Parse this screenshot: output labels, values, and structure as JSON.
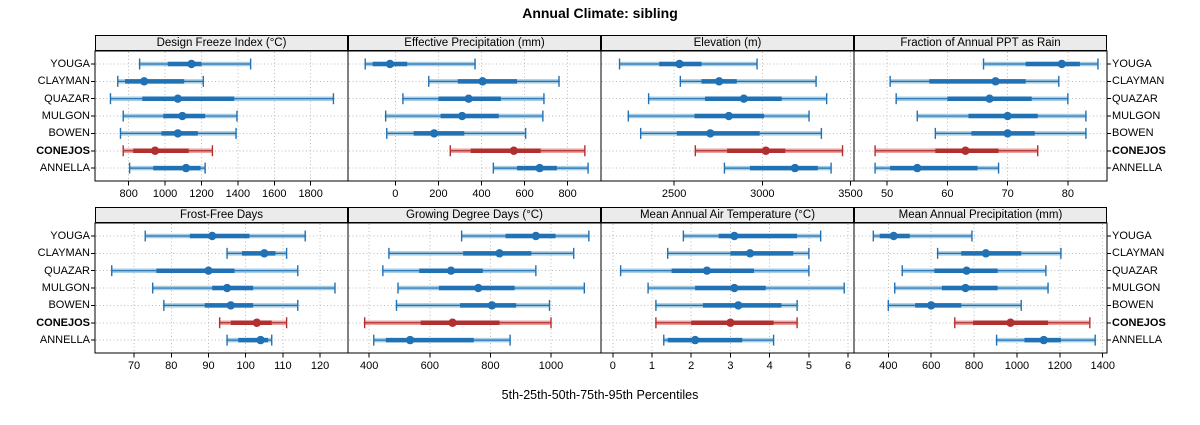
{
  "title": "Annual Climate: sibling",
  "caption": "5th-25th-50th-75th-95th Percentiles",
  "sites": [
    "YOUGA",
    "CLAYMAN",
    "QUAZAR",
    "MULGON",
    "BOWEN",
    "CONEJOS",
    "ANNELLA"
  ],
  "highlight_site": "CONEJOS",
  "colors": {
    "series_blue": "#2171b5",
    "series_blue_light": "#a8cee3",
    "highlight_red": "#b22f2f",
    "highlight_red_light": "#e9a3a3",
    "grid": "#bbbbbb",
    "strip_bg": "#ebebeb",
    "border": "#000000"
  },
  "chart_data": {
    "type": "percentile-dotplot",
    "layout": "2 rows x 4 columns, shared site rows",
    "percentile_labels": [
      "5th",
      "25th",
      "50th",
      "75th",
      "95th"
    ],
    "panels": [
      {
        "title": "Design Freeze Index (°C)",
        "row": 0,
        "col": 0,
        "xlim": [
          615,
          2005
        ],
        "ticks": [
          800,
          1000,
          1200,
          1400,
          1600,
          1800
        ],
        "series": [
          {
            "site": "YOUGA",
            "p": [
              860,
              1015,
              1145,
              1200,
              1470
            ]
          },
          {
            "site": "CLAYMAN",
            "p": [
              740,
              780,
              885,
              1105,
              1210
            ]
          },
          {
            "site": "QUAZAR",
            "p": [
              700,
              875,
              1070,
              1380,
              1925
            ]
          },
          {
            "site": "MULGON",
            "p": [
              770,
              990,
              1095,
              1220,
              1395
            ]
          },
          {
            "site": "BOWEN",
            "p": [
              755,
              980,
              1070,
              1180,
              1390
            ]
          },
          {
            "site": "CONEJOS",
            "p": [
              770,
              825,
              945,
              1130,
              1260
            ]
          },
          {
            "site": "ANNELLA",
            "p": [
              805,
              935,
              1115,
              1195,
              1220
            ]
          }
        ]
      },
      {
        "title": "Effective Precipitation (mm)",
        "row": 0,
        "col": 1,
        "xlim": [
          -220,
          955
        ],
        "ticks": [
          0,
          200,
          400,
          600,
          800
        ],
        "series": [
          {
            "site": "YOUGA",
            "p": [
              -140,
              -105,
              -25,
              55,
              370
            ]
          },
          {
            "site": "CLAYMAN",
            "p": [
              155,
              290,
              405,
              565,
              760
            ]
          },
          {
            "site": "QUAZAR",
            "p": [
              35,
              200,
              340,
              490,
              690
            ]
          },
          {
            "site": "MULGON",
            "p": [
              -45,
              210,
              310,
              480,
              685
            ]
          },
          {
            "site": "BOWEN",
            "p": [
              -40,
              85,
              180,
              320,
              605
            ]
          },
          {
            "site": "CONEJOS",
            "p": [
              255,
              350,
              550,
              675,
              880
            ]
          },
          {
            "site": "ANNELLA",
            "p": [
              455,
              565,
              670,
              750,
              895
            ]
          }
        ]
      },
      {
        "title": "Elevation (m)",
        "row": 0,
        "col": 2,
        "xlim": [
          2085,
          3520
        ],
        "ticks": [
          2500,
          3000,
          3500
        ],
        "series": [
          {
            "site": "YOUGA",
            "p": [
              2190,
              2415,
              2530,
              2655,
              2970
            ]
          },
          {
            "site": "CLAYMAN",
            "p": [
              2535,
              2655,
              2755,
              2855,
              3305
            ]
          },
          {
            "site": "QUAZAR",
            "p": [
              2355,
              2675,
              2895,
              3110,
              3365
            ]
          },
          {
            "site": "MULGON",
            "p": [
              2240,
              2615,
              2810,
              3010,
              3265
            ]
          },
          {
            "site": "BOWEN",
            "p": [
              2310,
              2515,
              2705,
              2985,
              3335
            ]
          },
          {
            "site": "CONEJOS",
            "p": [
              2620,
              2800,
              3020,
              3130,
              3455
            ]
          },
          {
            "site": "ANNELLA",
            "p": [
              2785,
              2930,
              3185,
              3315,
              3390
            ]
          }
        ]
      },
      {
        "title": "Fraction of Annual PPT as Rain",
        "row": 0,
        "col": 3,
        "xlim": [
          44.5,
          86.5
        ],
        "ticks": [
          50,
          60,
          70,
          80
        ],
        "series": [
          {
            "site": "YOUGA",
            "p": [
              66,
              73,
              79,
              82,
              85
            ]
          },
          {
            "site": "CLAYMAN",
            "p": [
              50.5,
              57,
              68,
              73,
              78.5
            ]
          },
          {
            "site": "QUAZAR",
            "p": [
              51.5,
              60,
              67,
              74,
              80
            ]
          },
          {
            "site": "MULGON",
            "p": [
              55,
              63.5,
              70,
              75,
              83
            ]
          },
          {
            "site": "BOWEN",
            "p": [
              58,
              64,
              70,
              74.5,
              83
            ]
          },
          {
            "site": "CONEJOS",
            "p": [
              48,
              58,
              63,
              68.5,
              75
            ]
          },
          {
            "site": "ANNELLA",
            "p": [
              48,
              50.5,
              55,
              65,
              68.5
            ]
          }
        ]
      },
      {
        "title": "Frost-Free Days",
        "row": 1,
        "col": 0,
        "xlim": [
          59.5,
          127.5
        ],
        "ticks": [
          70,
          80,
          90,
          100,
          110,
          120
        ],
        "series": [
          {
            "site": "YOUGA",
            "p": [
              73,
              85,
              91,
              101,
              116
            ]
          },
          {
            "site": "CLAYMAN",
            "p": [
              95,
              99,
              105,
              108,
              111
            ]
          },
          {
            "site": "QUAZAR",
            "p": [
              64,
              76,
              90,
              97,
              114
            ]
          },
          {
            "site": "MULGON",
            "p": [
              75,
              91,
              95,
              102,
              124
            ]
          },
          {
            "site": "BOWEN",
            "p": [
              78,
              89,
              96,
              102,
              114
            ]
          },
          {
            "site": "CONEJOS",
            "p": [
              93,
              96,
              103,
              107,
              111
            ]
          },
          {
            "site": "ANNELLA",
            "p": [
              95,
              98,
              104,
              106,
              107
            ]
          }
        ]
      },
      {
        "title": "Growing Degree Days (°C)",
        "row": 1,
        "col": 1,
        "xlim": [
          330,
          1165
        ],
        "ticks": [
          400,
          600,
          800,
          1000
        ],
        "series": [
          {
            "site": "YOUGA",
            "p": [
              705,
              850,
              950,
              1015,
              1125
            ]
          },
          {
            "site": "CLAYMAN",
            "p": [
              465,
              710,
              830,
              935,
              1075
            ]
          },
          {
            "site": "QUAZAR",
            "p": [
              445,
              565,
              670,
              775,
              950
            ]
          },
          {
            "site": "MULGON",
            "p": [
              495,
              630,
              760,
              880,
              1110
            ]
          },
          {
            "site": "BOWEN",
            "p": [
              490,
              700,
              805,
              885,
              995
            ]
          },
          {
            "site": "CONEJOS",
            "p": [
              385,
              570,
              675,
              830,
              1000
            ]
          },
          {
            "site": "ANNELLA",
            "p": [
              415,
              455,
              535,
              745,
              865
            ]
          }
        ]
      },
      {
        "title": "Mean Annual Air Temperature (°C)",
        "row": 1,
        "col": 2,
        "xlim": [
          -0.3,
          6.15
        ],
        "ticks": [
          0,
          1,
          2,
          3,
          4,
          5,
          6
        ],
        "series": [
          {
            "site": "YOUGA",
            "p": [
              1.8,
              2.7,
              3.1,
              4.7,
              5.3
            ]
          },
          {
            "site": "CLAYMAN",
            "p": [
              1.4,
              3.0,
              3.5,
              4.6,
              5.0
            ]
          },
          {
            "site": "QUAZAR",
            "p": [
              0.2,
              1.5,
              2.4,
              3.6,
              5.0
            ]
          },
          {
            "site": "MULGON",
            "p": [
              0.9,
              2.1,
              3.1,
              3.9,
              5.9
            ]
          },
          {
            "site": "BOWEN",
            "p": [
              1.1,
              2.3,
              3.2,
              4.3,
              4.7
            ]
          },
          {
            "site": "CONEJOS",
            "p": [
              1.1,
              2.0,
              3.0,
              4.1,
              4.7
            ]
          },
          {
            "site": "ANNELLA",
            "p": [
              1.3,
              1.4,
              2.1,
              3.3,
              4.1
            ]
          }
        ]
      },
      {
        "title": "Mean Annual Precipitation (mm)",
        "row": 1,
        "col": 3,
        "xlim": [
          240,
          1420
        ],
        "ticks": [
          400,
          600,
          800,
          1000,
          1200,
          1400
        ],
        "series": [
          {
            "site": "YOUGA",
            "p": [
              330,
              360,
              425,
              500,
              790
            ]
          },
          {
            "site": "CLAYMAN",
            "p": [
              630,
              740,
              855,
              1020,
              1205
            ]
          },
          {
            "site": "QUAZAR",
            "p": [
              465,
              615,
              765,
              910,
              1135
            ]
          },
          {
            "site": "MULGON",
            "p": [
              430,
              650,
              760,
              910,
              1145
            ]
          },
          {
            "site": "BOWEN",
            "p": [
              400,
              525,
              600,
              740,
              1020
            ]
          },
          {
            "site": "CONEJOS",
            "p": [
              710,
              795,
              970,
              1145,
              1340
            ]
          },
          {
            "site": "ANNELLA",
            "p": [
              905,
              1035,
              1125,
              1205,
              1365
            ]
          }
        ]
      }
    ]
  }
}
